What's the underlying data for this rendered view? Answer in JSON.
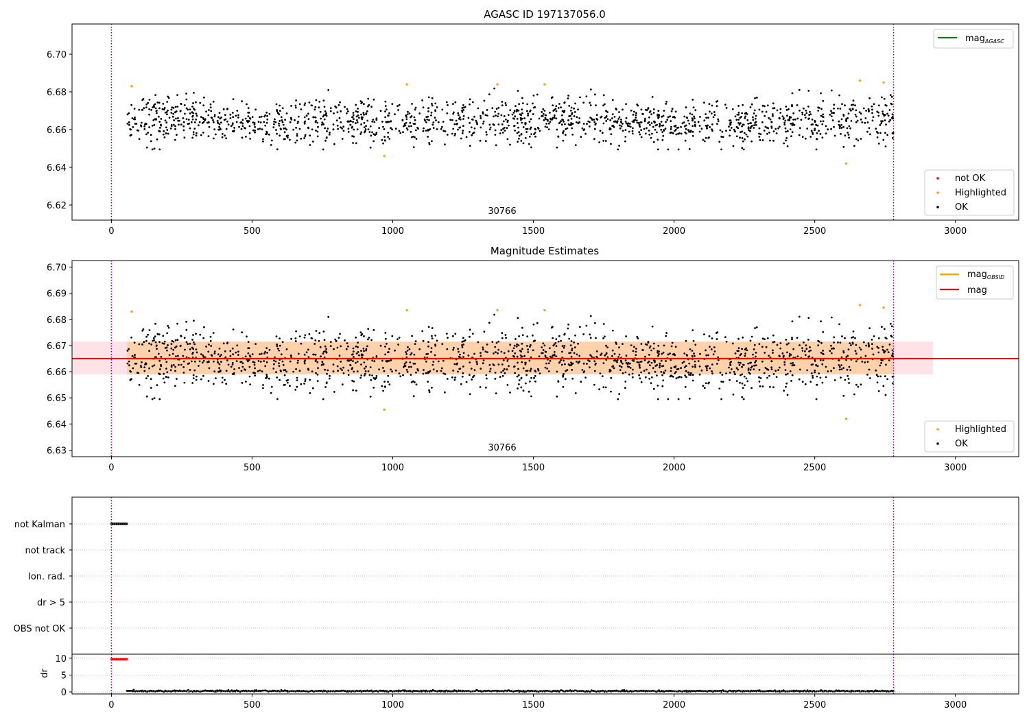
{
  "chart_data": [
    {
      "type": "scatter",
      "title": "AGASC ID 197137056.0",
      "xlim": [
        -140,
        3225
      ],
      "ylim": [
        6.612,
        6.716
      ],
      "xticks": [
        0,
        500,
        1000,
        1500,
        2000,
        2500,
        3000
      ],
      "yticks": [
        6.62,
        6.64,
        6.66,
        6.68,
        6.7
      ],
      "vlines": [
        0,
        2780
      ],
      "obsid_label": {
        "text": "30766",
        "x": 1390
      },
      "lines": [
        {
          "name": "mag",
          "sub": "AGASC",
          "color": "#008000",
          "y": 6.665,
          "visible": false
        }
      ],
      "series": [
        {
          "name": "not OK",
          "color": "#ff0000",
          "points": []
        },
        {
          "name": "Highlighted",
          "color": "#ffa500",
          "points": [
            [
              72,
              6.683
            ],
            [
              970,
              6.646
            ],
            [
              1050,
              6.684
            ],
            [
              1372,
              6.684
            ],
            [
              1540,
              6.684
            ],
            [
              2612,
              6.642
            ],
            [
              2660,
              6.686
            ],
            [
              2745,
              6.685
            ]
          ]
        },
        {
          "name": "OK",
          "color": "#000000",
          "generated": true,
          "n": 1600,
          "x_range": [
            55,
            2780
          ],
          "center": 6.664,
          "spread": 0.0065
        }
      ],
      "legends": [
        {
          "position": "top-right",
          "entries": [
            {
              "name": "mag",
              "sub": "AGASC",
              "kind": "line",
              "color": "#008000"
            }
          ]
        },
        {
          "position": "bottom-right",
          "entries": [
            {
              "name": "not OK",
              "kind": "dot",
              "color": "#ff0000"
            },
            {
              "name": "Highlighted",
              "kind": "dot",
              "color": "#ffa500"
            },
            {
              "name": "OK",
              "kind": "dot",
              "color": "#000000"
            }
          ]
        }
      ]
    },
    {
      "type": "scatter",
      "title": "Magnitude Estimates",
      "xlim": [
        -140,
        3225
      ],
      "ylim": [
        6.6275,
        6.7025
      ],
      "xticks": [
        0,
        500,
        1000,
        1500,
        2000,
        2500,
        3000
      ],
      "yticks": [
        6.63,
        6.64,
        6.65,
        6.66,
        6.67,
        6.68,
        6.69,
        6.7
      ],
      "vlines": [
        0,
        2780
      ],
      "obsid_label": {
        "text": "30766",
        "x": 1390
      },
      "bands": [
        {
          "x": [
            -140,
            2920
          ],
          "y": [
            6.659,
            6.6715
          ],
          "color": "#ffb6c1",
          "opacity": 0.4
        },
        {
          "x": [
            55,
            2780
          ],
          "y": [
            6.659,
            6.6715
          ],
          "color": "#ffa500",
          "opacity": 0.25
        }
      ],
      "lines": [
        {
          "name": "mag",
          "sub": "OBSID",
          "color": "#ffa500",
          "y": 6.665,
          "x": [
            55,
            2780
          ]
        },
        {
          "name": "mag",
          "color": "#ff0000",
          "y": 6.665,
          "x": [
            -140,
            3225
          ]
        }
      ],
      "series": [
        {
          "name": "Highlighted",
          "color": "#ffa500",
          "points": [
            [
              72,
              6.683
            ],
            [
              970,
              6.6455
            ],
            [
              1050,
              6.6835
            ],
            [
              1372,
              6.6835
            ],
            [
              1540,
              6.6835
            ],
            [
              2612,
              6.642
            ],
            [
              2660,
              6.6855
            ],
            [
              2745,
              6.6845
            ]
          ]
        },
        {
          "name": "OK",
          "color": "#000000",
          "generated": true,
          "n": 1600,
          "x_range": [
            55,
            2780
          ],
          "center": 6.664,
          "spread": 0.0065
        }
      ],
      "legends": [
        {
          "position": "top-right",
          "entries": [
            {
              "name": "mag",
              "sub": "OBSID",
              "kind": "line",
              "color": "#ffa500"
            },
            {
              "name": "mag",
              "kind": "line",
              "color": "#ff0000"
            }
          ]
        },
        {
          "position": "bottom-right",
          "entries": [
            {
              "name": "Highlighted",
              "kind": "dot",
              "color": "#ffa500"
            },
            {
              "name": "OK",
              "kind": "dot",
              "color": "#000000"
            }
          ]
        }
      ]
    },
    {
      "type": "scatter",
      "title": "",
      "xlim": [
        -140,
        3225
      ],
      "categories": [
        "not Kalman",
        "not track",
        "Ion. rad.",
        "dr > 5",
        "OBS not OK"
      ],
      "vlines": [
        0,
        2780
      ],
      "flag_points": {
        "category": "not Kalman",
        "x_range": [
          0,
          55
        ],
        "n": 22,
        "color": "#000000"
      }
    },
    {
      "type": "scatter",
      "title": "",
      "ylabel": "dr",
      "xlim": [
        -140,
        3225
      ],
      "ylim": [
        -0.6,
        11.2
      ],
      "xticks": [
        0,
        500,
        1000,
        1500,
        2000,
        2500,
        3000
      ],
      "yticks": [
        0,
        5,
        10
      ],
      "vlines": [
        0,
        2780
      ],
      "series": [
        {
          "name": "dr high",
          "color": "#ff0000",
          "x_range": [
            0,
            55
          ],
          "y": 9.7,
          "n": 22
        },
        {
          "name": "dr",
          "color": "#000000",
          "x_range": [
            55,
            2780
          ],
          "y": 0.25,
          "n": 900
        }
      ]
    }
  ]
}
